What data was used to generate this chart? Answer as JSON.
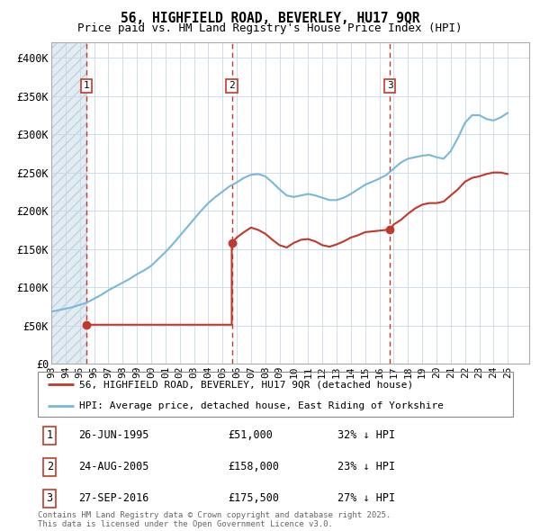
{
  "title_line1": "56, HIGHFIELD ROAD, BEVERLEY, HU17 9QR",
  "title_line2": "Price paid vs. HM Land Registry's House Price Index (HPI)",
  "ylim": [
    0,
    420000
  ],
  "xlim_start": 1993.0,
  "xlim_end": 2026.5,
  "yticks": [
    0,
    50000,
    100000,
    150000,
    200000,
    250000,
    300000,
    350000,
    400000
  ],
  "ytick_labels": [
    "£0",
    "£50K",
    "£100K",
    "£150K",
    "£200K",
    "£250K",
    "£300K",
    "£350K",
    "£400K"
  ],
  "xtick_years": [
    1993,
    1994,
    1995,
    1996,
    1997,
    1998,
    1999,
    2000,
    2001,
    2002,
    2003,
    2004,
    2005,
    2006,
    2007,
    2008,
    2009,
    2010,
    2011,
    2012,
    2013,
    2014,
    2015,
    2016,
    2017,
    2018,
    2019,
    2020,
    2021,
    2022,
    2023,
    2024,
    2025
  ],
  "sale_dates": [
    1995.48,
    2005.65,
    2016.74
  ],
  "sale_prices": [
    51000,
    158000,
    175500
  ],
  "sale_labels": [
    "1",
    "2",
    "3"
  ],
  "hpi_line_color": "#7ab8d9",
  "price_line_color": "#c0392b",
  "sale_marker_color": "#c0392b",
  "vline_color": "#c0392b",
  "grid_color": "#c5d8e8",
  "legend_entries": [
    "56, HIGHFIELD ROAD, BEVERLEY, HU17 9QR (detached house)",
    "HPI: Average price, detached house, East Riding of Yorkshire"
  ],
  "legend_line_colors": [
    "#c0392b",
    "#7ab8d9"
  ],
  "table_entries": [
    {
      "num": "1",
      "date": "26-JUN-1995",
      "price": "£51,000",
      "hpi": "32% ↓ HPI"
    },
    {
      "num": "2",
      "date": "24-AUG-2005",
      "price": "£158,000",
      "hpi": "23% ↓ HPI"
    },
    {
      "num": "3",
      "date": "27-SEP-2016",
      "price": "£175,500",
      "hpi": "27% ↓ HPI"
    }
  ],
  "footnote": "Contains HM Land Registry data © Crown copyright and database right 2025.\nThis data is licensed under the Open Government Licence v3.0.",
  "hpi_x": [
    1993.0,
    1993.5,
    1994.0,
    1994.5,
    1995.0,
    1995.5,
    1996.0,
    1996.5,
    1997.0,
    1997.5,
    1998.0,
    1998.5,
    1999.0,
    1999.5,
    2000.0,
    2000.5,
    2001.0,
    2001.5,
    2002.0,
    2002.5,
    2003.0,
    2003.5,
    2004.0,
    2004.5,
    2005.0,
    2005.5,
    2006.0,
    2006.5,
    2007.0,
    2007.5,
    2008.0,
    2008.5,
    2009.0,
    2009.5,
    2010.0,
    2010.5,
    2011.0,
    2011.5,
    2012.0,
    2012.5,
    2013.0,
    2013.5,
    2014.0,
    2014.5,
    2015.0,
    2015.5,
    2016.0,
    2016.5,
    2017.0,
    2017.5,
    2018.0,
    2018.5,
    2019.0,
    2019.5,
    2020.0,
    2020.5,
    2021.0,
    2021.5,
    2022.0,
    2022.5,
    2023.0,
    2023.5,
    2024.0,
    2024.5,
    2025.0
  ],
  "hpi_y": [
    68000,
    70000,
    72000,
    74000,
    77000,
    80000,
    85000,
    90000,
    96000,
    101000,
    106000,
    111000,
    117000,
    122000,
    128000,
    137000,
    146000,
    156000,
    167000,
    178000,
    189000,
    200000,
    210000,
    218000,
    225000,
    232000,
    237000,
    243000,
    247000,
    248000,
    245000,
    237000,
    228000,
    220000,
    218000,
    220000,
    222000,
    220000,
    217000,
    214000,
    214000,
    217000,
    222000,
    228000,
    234000,
    238000,
    242000,
    247000,
    255000,
    263000,
    268000,
    270000,
    272000,
    273000,
    270000,
    268000,
    278000,
    295000,
    315000,
    325000,
    325000,
    320000,
    318000,
    322000,
    328000
  ],
  "price_x": [
    1995.48,
    2005.65,
    2005.65,
    2006.0,
    2006.5,
    2007.0,
    2007.5,
    2008.0,
    2008.5,
    2009.0,
    2009.5,
    2010.0,
    2010.5,
    2011.0,
    2011.5,
    2012.0,
    2012.5,
    2013.0,
    2013.5,
    2014.0,
    2014.5,
    2015.0,
    2015.5,
    2016.0,
    2016.74,
    2017.0,
    2017.5,
    2018.0,
    2018.5,
    2019.0,
    2019.5,
    2020.0,
    2020.5,
    2021.0,
    2021.5,
    2022.0,
    2022.5,
    2023.0,
    2023.5,
    2024.0,
    2024.5,
    2025.0
  ],
  "price_y": [
    51000,
    51000,
    158000,
    165000,
    172000,
    178000,
    175000,
    170000,
    162000,
    155000,
    152000,
    158000,
    162000,
    163000,
    160000,
    155000,
    153000,
    156000,
    160000,
    165000,
    168000,
    172000,
    173000,
    174000,
    175500,
    182000,
    188000,
    196000,
    203000,
    208000,
    210000,
    210000,
    212000,
    220000,
    228000,
    238000,
    243000,
    245000,
    248000,
    250000,
    250000,
    248000
  ]
}
